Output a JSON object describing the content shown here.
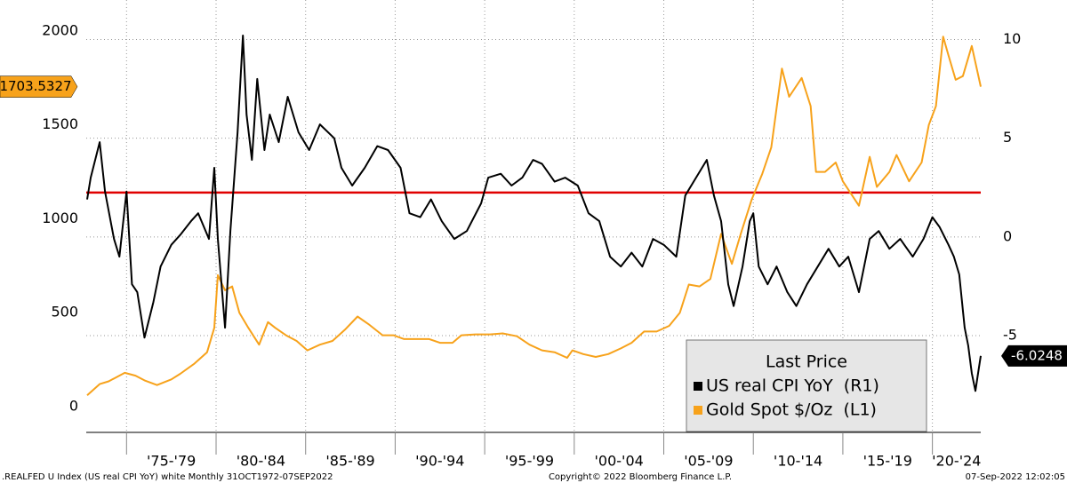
{
  "chart_data": {
    "type": "line",
    "legend_title": "Last Price",
    "legend_position": "lower right",
    "grid": "y2",
    "xlim": [
      1972.75,
      2022.7
    ],
    "ylim": [
      -137,
      2165
    ],
    "yticks": [
      0,
      500,
      1000,
      1500,
      2000
    ],
    "y2lim": [
      -9.9,
      12.0
    ],
    "y2ticks": [
      -5,
      0,
      5,
      10
    ],
    "reference_line": {
      "value": 2.25,
      "axis": "y2",
      "color": "#e00000"
    },
    "xbands": [
      {
        "label": "'75-'79",
        "from": 1975,
        "to": 1980
      },
      {
        "label": "'80-'84",
        "from": 1980,
        "to": 1985
      },
      {
        "label": "'85-'89",
        "from": 1985,
        "to": 1990
      },
      {
        "label": "'90-'94",
        "from": 1990,
        "to": 1995
      },
      {
        "label": "'95-'99",
        "from": 1995,
        "to": 2000
      },
      {
        "label": "'00-'04",
        "from": 2000,
        "to": 2005
      },
      {
        "label": "'05-'09",
        "from": 2005,
        "to": 2010
      },
      {
        "label": "'10-'14",
        "from": 2010,
        "to": 2015
      },
      {
        "label": "'15-'19",
        "from": 2015,
        "to": 2020
      },
      {
        "label": "'20-'24",
        "from": 2020,
        "to": 2025
      }
    ],
    "series": [
      {
        "name": "US real CPI YoY  (R1)",
        "color": "#000000",
        "axis": "y2",
        "tag_side": "right",
        "x": [
          1972.8,
          1973.0,
          1973.5,
          1973.8,
          1974.3,
          1974.6,
          1975.0,
          1975.3,
          1975.6,
          1976.0,
          1976.5,
          1976.9,
          1977.5,
          1978.0,
          1978.6,
          1979.0,
          1979.6,
          1979.9,
          1980.1,
          1980.5,
          1980.8,
          1981.2,
          1981.5,
          1981.7,
          1982.0,
          1982.3,
          1982.7,
          1983.0,
          1983.5,
          1984.0,
          1984.6,
          1985.2,
          1985.8,
          1986.6,
          1987.0,
          1987.6,
          1988.3,
          1989.0,
          1989.6,
          1990.3,
          1990.8,
          1991.4,
          1992.0,
          1992.6,
          1993.3,
          1994.0,
          1994.8,
          1995.2,
          1995.9,
          1996.5,
          1997.1,
          1997.7,
          1998.2,
          1998.9,
          1999.5,
          2000.2,
          2000.8,
          2001.4,
          2002.0,
          2002.6,
          2003.2,
          2003.8,
          2004.4,
          2005.0,
          2005.7,
          2006.2,
          2006.8,
          2007.4,
          2007.8,
          2008.2,
          2008.6,
          2008.9,
          2009.4,
          2009.8,
          2010.0,
          2010.3,
          2010.8,
          2011.3,
          2011.9,
          2012.4,
          2013.0,
          2013.6,
          2014.2,
          2014.8,
          2015.3,
          2015.9,
          2016.5,
          2017.0,
          2017.6,
          2018.2,
          2018.9,
          2019.5,
          2020.0,
          2020.4,
          2020.9,
          2021.2,
          2021.5,
          2021.8,
          2022.0,
          2022.2,
          2022.4,
          2022.55,
          2022.7
        ],
        "values": [
          1.9,
          3.0,
          4.8,
          2.3,
          -0.1,
          -1.0,
          2.3,
          -2.4,
          -2.8,
          -5.1,
          -3.3,
          -1.5,
          -0.4,
          0.1,
          0.8,
          1.2,
          -0.1,
          3.5,
          -0.1,
          -4.6,
          0.3,
          5.3,
          10.2,
          6.2,
          3.9,
          8.0,
          4.4,
          6.2,
          4.8,
          7.1,
          5.3,
          4.4,
          5.7,
          5.0,
          3.5,
          2.6,
          3.5,
          4.6,
          4.4,
          3.5,
          1.2,
          1.0,
          1.9,
          0.8,
          -0.1,
          0.3,
          1.7,
          3.0,
          3.2,
          2.6,
          3.0,
          3.9,
          3.7,
          2.8,
          3.0,
          2.6,
          1.2,
          0.8,
          -1.0,
          -1.5,
          -0.8,
          -1.5,
          -0.1,
          -0.4,
          -1.0,
          2.1,
          3.0,
          3.9,
          2.1,
          0.8,
          -2.4,
          -3.5,
          -1.5,
          0.8,
          1.2,
          -1.5,
          -2.4,
          -1.5,
          -2.8,
          -3.5,
          -2.4,
          -1.5,
          -0.6,
          -1.5,
          -1.0,
          -2.8,
          -0.1,
          0.3,
          -0.6,
          -0.1,
          -1.0,
          -0.1,
          1.0,
          0.5,
          -0.4,
          -1.0,
          -1.9,
          -4.6,
          -5.5,
          -6.9,
          -7.8,
          -6.9,
          -6.0248
        ]
      },
      {
        "name": "Gold Spot $/Oz  (L1)",
        "color": "#f7a21b",
        "axis": "y",
        "tag_side": "left",
        "x": [
          1972.8,
          1973.5,
          1974.0,
          1974.9,
          1975.5,
          1976.0,
          1976.7,
          1977.5,
          1978.0,
          1978.8,
          1979.5,
          1979.9,
          1980.1,
          1980.5,
          1980.9,
          1981.3,
          1981.8,
          1982.4,
          1982.9,
          1983.3,
          1983.9,
          1984.5,
          1985.1,
          1985.8,
          1986.5,
          1987.2,
          1987.9,
          1988.5,
          1989.3,
          1989.9,
          1990.5,
          1991.2,
          1991.9,
          1992.5,
          1993.2,
          1993.7,
          1994.5,
          1995.3,
          1996.0,
          1996.8,
          1997.5,
          1998.2,
          1998.9,
          1999.6,
          1999.9,
          2000.5,
          2001.2,
          2001.9,
          2002.6,
          2003.2,
          2003.9,
          2004.6,
          2005.3,
          2005.9,
          2006.4,
          2007.0,
          2007.6,
          2008.2,
          2008.8,
          2009.3,
          2009.9,
          2010.5,
          2011.0,
          2011.6,
          2012.0,
          2012.7,
          2013.2,
          2013.5,
          2014.0,
          2014.6,
          2015.0,
          2015.9,
          2016.5,
          2016.9,
          2017.6,
          2018.0,
          2018.7,
          2019.4,
          2019.8,
          2020.2,
          2020.6,
          2020.9,
          2021.3,
          2021.7,
          2022.2,
          2022.7
        ],
        "values": [
          60,
          120,
          135,
          180,
          165,
          140,
          115,
          145,
          175,
          230,
          290,
          420,
          700,
          620,
          640,
          500,
          420,
          330,
          450,
          420,
          380,
          350,
          300,
          330,
          350,
          410,
          480,
          440,
          380,
          380,
          360,
          360,
          360,
          340,
          340,
          380,
          385,
          385,
          390,
          375,
          330,
          300,
          290,
          260,
          300,
          280,
          265,
          280,
          310,
          340,
          400,
          400,
          430,
          500,
          650,
          640,
          680,
          920,
          760,
          920,
          1100,
          1240,
          1380,
          1800,
          1650,
          1750,
          1600,
          1250,
          1250,
          1300,
          1200,
          1070,
          1330,
          1170,
          1250,
          1340,
          1200,
          1300,
          1500,
          1600,
          1970,
          1870,
          1740,
          1760,
          1920,
          1703.5327
        ]
      }
    ],
    "footer": {
      "left": ".REALFED U Index (US real CPI YoY) white  Monthly 31OCT1972-07SEP2022",
      "center": "Copyright© 2022 Bloomberg Finance L.P.",
      "right": "07-Sep-2022 12:02:05"
    }
  }
}
